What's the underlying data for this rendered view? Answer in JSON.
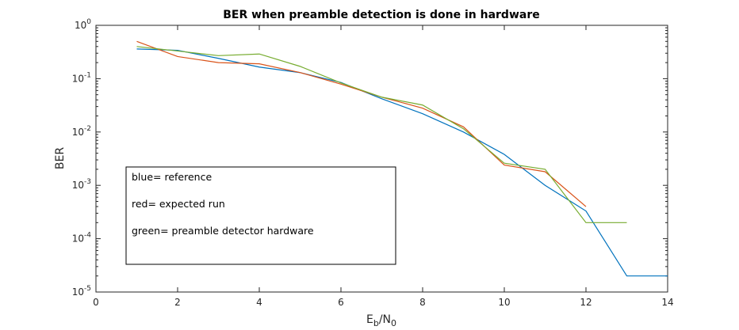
{
  "chart_data": {
    "type": "line",
    "title": "BER when preamble detection is done in hardware",
    "xlabel": {
      "main": "E",
      "sub1": "b",
      "slash": "/N",
      "sub2": "0"
    },
    "ylabel": "BER",
    "xlim": [
      0,
      14
    ],
    "ylim": [
      1e-05,
      1
    ],
    "yscale": "log",
    "grid": false,
    "x_ticks": [
      "0",
      "2",
      "4",
      "6",
      "8",
      "10",
      "12",
      "14"
    ],
    "y_ticks": [
      {
        "base": "10",
        "exp": "0",
        "value": 1
      },
      {
        "base": "10",
        "exp": "-1",
        "value": 0.1
      },
      {
        "base": "10",
        "exp": "-2",
        "value": 0.01
      },
      {
        "base": "10",
        "exp": "-3",
        "value": 0.001
      },
      {
        "base": "10",
        "exp": "-4",
        "value": 0.0001
      },
      {
        "base": "10",
        "exp": "-5",
        "value": 1e-05
      }
    ],
    "series": [
      {
        "color": "#0072BD",
        "x": [
          1,
          2,
          3,
          4,
          5,
          6,
          7,
          8,
          9,
          10,
          11,
          12,
          13,
          14
        ],
        "y": [
          0.36,
          0.34,
          0.24,
          0.165,
          0.13,
          0.085,
          0.042,
          0.022,
          0.01,
          0.0038,
          0.001,
          0.00033,
          2e-05,
          2e-05
        ]
      },
      {
        "color": "#D95319",
        "x": [
          1,
          2,
          3,
          4,
          5,
          6,
          7,
          8,
          9,
          10,
          11,
          12
        ],
        "y": [
          0.5,
          0.26,
          0.2,
          0.19,
          0.13,
          0.079,
          0.045,
          0.028,
          0.0125,
          0.0024,
          0.0018,
          0.0004
        ]
      },
      {
        "color": "#77AC30",
        "x": [
          1,
          2,
          3,
          4,
          5,
          6,
          7,
          8,
          9,
          10,
          11,
          12,
          13
        ],
        "y": [
          0.4,
          0.33,
          0.27,
          0.29,
          0.17,
          0.083,
          0.045,
          0.032,
          0.0115,
          0.0026,
          0.002,
          0.0002,
          0.0002
        ]
      }
    ],
    "annotation": {
      "lines": [
        "blue= reference",
        "red= expected run",
        "green= preamble detector hardware"
      ]
    }
  }
}
